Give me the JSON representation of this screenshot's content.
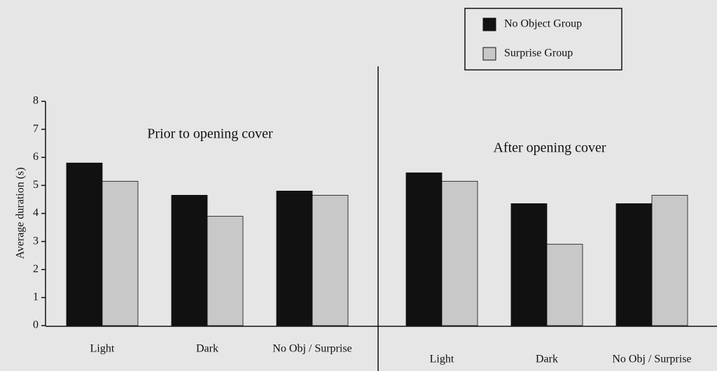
{
  "chart_data": {
    "type": "bar",
    "ylabel": "Average duration (s)",
    "ylim": [
      0,
      8
    ],
    "yticks": [
      0,
      1,
      2,
      3,
      4,
      5,
      6,
      7,
      8
    ],
    "series": [
      {
        "name": "No Object Group",
        "color": "#111111"
      },
      {
        "name": "Surprise Group",
        "color": "#c8c8c8"
      }
    ],
    "panels": [
      {
        "title": "Prior to opening cover",
        "categories": [
          "Light",
          "Dark",
          "No Obj / Surprise"
        ],
        "values": [
          [
            5.8,
            4.65,
            4.8
          ],
          [
            5.15,
            3.9,
            4.65
          ]
        ]
      },
      {
        "title": "After opening cover",
        "categories": [
          "Light",
          "Dark",
          "No Obj / Surprise"
        ],
        "values": [
          [
            5.45,
            4.35,
            4.35
          ],
          [
            5.15,
            2.9,
            4.65
          ]
        ]
      }
    ]
  }
}
